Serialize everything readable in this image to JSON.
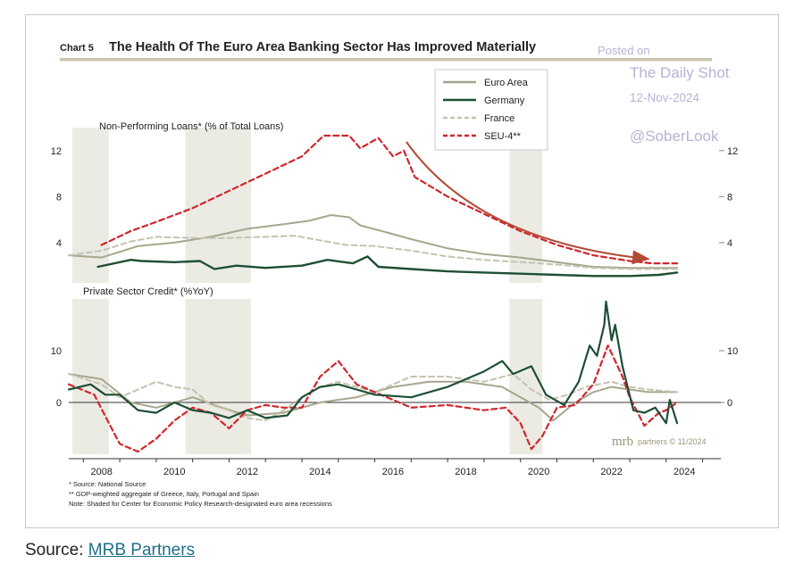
{
  "chart_data": {
    "type": "line",
    "title_prefix": "Chart 5",
    "title": "The Health Of The Euro Area Banking Sector Has Improved Materially",
    "watermark": [
      "Posted on",
      "The Daily Shot",
      "12-Nov-2024",
      "@SoberLook"
    ],
    "x_ticks": [
      "2008",
      "2010",
      "2012",
      "2014",
      "2016",
      "2018",
      "2020",
      "2022",
      "2024"
    ],
    "x_range": [
      2007.6,
      2025.5
    ],
    "recessions": [
      [
        2007.7,
        2008.7
      ],
      [
        2010.8,
        2012.6
      ],
      [
        2019.7,
        2020.6
      ]
    ],
    "legend": [
      {
        "label": "Euro Area",
        "color": "#a7a68c",
        "style": "solid"
      },
      {
        "label": "Germany",
        "color": "#1d4f35",
        "style": "solid"
      },
      {
        "label": "France",
        "color": "#c4c3b0",
        "style": "dashed"
      },
      {
        "label": "SEU-4**",
        "color": "#d0262c",
        "style": "dashed"
      }
    ],
    "panels": [
      {
        "label": "Non-Performing Loans* (% of Total Loans)",
        "ylim": [
          0.5,
          14
        ],
        "ticks": [
          "4",
          "8",
          "12"
        ],
        "tick_values": [
          4,
          8,
          12
        ],
        "series": [
          {
            "name": "Euro Area",
            "color": "#a7a68c",
            "dash": false,
            "width": 2,
            "points": [
              [
                2007.6,
                2.9
              ],
              [
                2008.5,
                2.7
              ],
              [
                2009.5,
                3.7
              ],
              [
                2010.5,
                4.0
              ],
              [
                2011.5,
                4.5
              ],
              [
                2012.5,
                5.2
              ],
              [
                2013.5,
                5.6
              ],
              [
                2014.2,
                5.9
              ],
              [
                2014.8,
                6.4
              ],
              [
                2015.3,
                6.2
              ],
              [
                2015.6,
                5.5
              ],
              [
                2016.2,
                5.0
              ],
              [
                2017,
                4.3
              ],
              [
                2018,
                3.5
              ],
              [
                2019,
                3.0
              ],
              [
                2020,
                2.7
              ],
              [
                2021,
                2.3
              ],
              [
                2022,
                1.9
              ],
              [
                2023,
                1.8
              ],
              [
                2024.3,
                1.8
              ]
            ]
          },
          {
            "name": "Germany",
            "color": "#1d4f35",
            "dash": false,
            "width": 2.4,
            "points": [
              [
                2008.4,
                1.9
              ],
              [
                2009.3,
                2.5
              ],
              [
                2009.6,
                2.4
              ],
              [
                2010.5,
                2.3
              ],
              [
                2011.2,
                2.4
              ],
              [
                2011.6,
                1.7
              ],
              [
                2012.2,
                2.0
              ],
              [
                2013,
                1.8
              ],
              [
                2014,
                2.0
              ],
              [
                2014.7,
                2.5
              ],
              [
                2015.4,
                2.2
              ],
              [
                2015.8,
                2.8
              ],
              [
                2016.1,
                1.9
              ],
              [
                2017,
                1.7
              ],
              [
                2018,
                1.5
              ],
              [
                2019,
                1.4
              ],
              [
                2020,
                1.3
              ],
              [
                2021,
                1.2
              ],
              [
                2022,
                1.1
              ],
              [
                2023,
                1.1
              ],
              [
                2023.8,
                1.2
              ],
              [
                2024.3,
                1.4
              ]
            ]
          },
          {
            "name": "France",
            "color": "#c4c3b0",
            "dash": true,
            "width": 2,
            "points": [
              [
                2007.6,
                2.9
              ],
              [
                2008.5,
                3.3
              ],
              [
                2009.3,
                4.1
              ],
              [
                2010,
                4.5
              ],
              [
                2011,
                4.4
              ],
              [
                2012,
                4.4
              ],
              [
                2013,
                4.5
              ],
              [
                2013.8,
                4.6
              ],
              [
                2014.5,
                4.2
              ],
              [
                2015.2,
                3.8
              ],
              [
                2016,
                3.7
              ],
              [
                2017,
                3.3
              ],
              [
                2018,
                2.8
              ],
              [
                2019,
                2.5
              ],
              [
                2020,
                2.3
              ],
              [
                2021,
                2.1
              ],
              [
                2022,
                1.8
              ],
              [
                2023,
                1.7
              ],
              [
                2024.3,
                1.7
              ]
            ]
          },
          {
            "name": "SEU-4**",
            "color": "#d0262c",
            "dash": true,
            "width": 2.2,
            "points": [
              [
                2008.5,
                3.8
              ],
              [
                2009.3,
                5.0
              ],
              [
                2010,
                5.8
              ],
              [
                2011,
                7.0
              ],
              [
                2012,
                8.5
              ],
              [
                2013,
                10.0
              ],
              [
                2014,
                11.5
              ],
              [
                2014.6,
                13.3
              ],
              [
                2015.3,
                13.3
              ],
              [
                2015.6,
                12.2
              ],
              [
                2016.1,
                13.1
              ],
              [
                2016.5,
                11.5
              ],
              [
                2016.8,
                12.0
              ],
              [
                2017.1,
                9.7
              ],
              [
                2018,
                8.0
              ],
              [
                2019,
                6.5
              ],
              [
                2020,
                5.0
              ],
              [
                2020.5,
                4.4
              ],
              [
                2021,
                3.8
              ],
              [
                2022,
                2.9
              ],
              [
                2023,
                2.4
              ],
              [
                2023.6,
                2.2
              ],
              [
                2024.3,
                2.2
              ]
            ]
          }
        ]
      },
      {
        "label": "Private Sector Credit* (%YoY)",
        "ylim": [
          -10,
          20
        ],
        "ticks": [
          "0",
          "10"
        ],
        "tick_values": [
          0,
          10
        ],
        "series": [
          {
            "name": "Euro Area",
            "color": "#a7a68c",
            "dash": false,
            "width": 2,
            "points": [
              [
                2007.6,
                5.5
              ],
              [
                2008.5,
                4.5
              ],
              [
                2009.3,
                0
              ],
              [
                2010,
                -1
              ],
              [
                2011,
                1
              ],
              [
                2011.8,
                -1
              ],
              [
                2012.5,
                -2.5
              ],
              [
                2013.5,
                -2
              ],
              [
                2014.5,
                0
              ],
              [
                2015.5,
                1
              ],
              [
                2016.5,
                3
              ],
              [
                2017.5,
                4
              ],
              [
                2018.5,
                4
              ],
              [
                2019.5,
                3
              ],
              [
                2020.5,
                -1
              ],
              [
                2020.9,
                -3.5
              ],
              [
                2021.5,
                0
              ],
              [
                2022,
                2
              ],
              [
                2022.5,
                3
              ],
              [
                2023,
                2.5
              ],
              [
                2023.5,
                2
              ],
              [
                2024.3,
                2
              ]
            ]
          },
          {
            "name": "Germany",
            "color": "#1d4f35",
            "dash": false,
            "width": 2.2,
            "points": [
              [
                2007.6,
                2.5
              ],
              [
                2008.2,
                3.5
              ],
              [
                2008.6,
                1.5
              ],
              [
                2009,
                1.5
              ],
              [
                2009.5,
                -1.5
              ],
              [
                2010,
                -2
              ],
              [
                2010.5,
                0
              ],
              [
                2011,
                -1.5
              ],
              [
                2011.5,
                -2
              ],
              [
                2012,
                -3
              ],
              [
                2012.5,
                -1.5
              ],
              [
                2013,
                -3
              ],
              [
                2013.6,
                -2.5
              ],
              [
                2014,
                1
              ],
              [
                2014.5,
                3
              ],
              [
                2015,
                3.5
              ],
              [
                2015.5,
                2.5
              ],
              [
                2016,
                1.5
              ],
              [
                2017,
                1
              ],
              [
                2018,
                3
              ],
              [
                2019,
                6
              ],
              [
                2019.5,
                8
              ],
              [
                2019.8,
                5.5
              ],
              [
                2020.3,
                7
              ],
              [
                2020.7,
                1.5
              ],
              [
                2021.2,
                -0.5
              ],
              [
                2021.6,
                4
              ],
              [
                2021.9,
                11
              ],
              [
                2022.1,
                9
              ],
              [
                2022.3,
                15
              ],
              [
                2022.35,
                19.5
              ],
              [
                2022.5,
                12
              ],
              [
                2022.6,
                15
              ],
              [
                2022.8,
                7
              ],
              [
                2023.1,
                -1.5
              ],
              [
                2023.4,
                -2
              ],
              [
                2023.7,
                -1
              ],
              [
                2024,
                -4
              ],
              [
                2024.1,
                0.5
              ],
              [
                2024.3,
                -4
              ]
            ]
          },
          {
            "name": "France",
            "color": "#c4c3b0",
            "dash": true,
            "width": 2,
            "points": [
              [
                2007.6,
                5.5
              ],
              [
                2008.5,
                3.5
              ],
              [
                2009,
                1
              ],
              [
                2009.5,
                2.5
              ],
              [
                2010,
                4
              ],
              [
                2010.5,
                3
              ],
              [
                2011,
                2.5
              ],
              [
                2011.5,
                -0.5
              ],
              [
                2012,
                -1.5
              ],
              [
                2012.5,
                -3
              ],
              [
                2013,
                -3.5
              ],
              [
                2013.5,
                -1.5
              ],
              [
                2014,
                1
              ],
              [
                2014.5,
                3
              ],
              [
                2015,
                4
              ],
              [
                2015.5,
                3
              ],
              [
                2016,
                2
              ],
              [
                2017,
                5
              ],
              [
                2018,
                5
              ],
              [
                2019,
                4
              ],
              [
                2019.8,
                5.5
              ],
              [
                2020.3,
                2.5
              ],
              [
                2020.8,
                0.5
              ],
              [
                2021.3,
                1.5
              ],
              [
                2021.8,
                3
              ],
              [
                2022.5,
                4
              ],
              [
                2023,
                3
              ],
              [
                2023.5,
                2.5
              ],
              [
                2024.3,
                2
              ]
            ]
          },
          {
            "name": "SEU-4**",
            "color": "#d0262c",
            "dash": true,
            "width": 2.2,
            "points": [
              [
                2007.6,
                3.5
              ],
              [
                2008.3,
                1.5
              ],
              [
                2008.7,
                -4
              ],
              [
                2009,
                -8
              ],
              [
                2009.5,
                -9.5
              ],
              [
                2010,
                -7
              ],
              [
                2010.5,
                -3.5
              ],
              [
                2011,
                -1
              ],
              [
                2011.5,
                -2
              ],
              [
                2012,
                -5
              ],
              [
                2012.5,
                -1.5
              ],
              [
                2013,
                -0.5
              ],
              [
                2013.5,
                -1
              ],
              [
                2014,
                -1
              ],
              [
                2014.5,
                5
              ],
              [
                2015,
                8
              ],
              [
                2015.5,
                3.5
              ],
              [
                2016,
                2
              ],
              [
                2017,
                -1
              ],
              [
                2018,
                -0.5
              ],
              [
                2019,
                -1.5
              ],
              [
                2019.6,
                -1
              ],
              [
                2020,
                -4
              ],
              [
                2020.3,
                -9
              ],
              [
                2020.6,
                -6.5
              ],
              [
                2021,
                -1
              ],
              [
                2021.5,
                -0.5
              ],
              [
                2022,
                3.5
              ],
              [
                2022.4,
                11
              ],
              [
                2022.8,
                5
              ],
              [
                2023,
                1
              ],
              [
                2023.4,
                -4.5
              ],
              [
                2023.8,
                -2
              ],
              [
                2024,
                -1.5
              ],
              [
                2024.3,
                0
              ]
            ]
          }
        ]
      }
    ],
    "footnotes": [
      "*  Source: National Source",
      "** GDP-weighted aggregate of Greece, Italy, Portugal and Spain",
      "Note: Shaded for Center for Economic Policy Research-designated euro area recessions"
    ],
    "brand": "mrb",
    "brand_suffix": "partners © 11/2024"
  },
  "source": {
    "prefix": "Source: ",
    "link_text": "MRB Partners"
  }
}
